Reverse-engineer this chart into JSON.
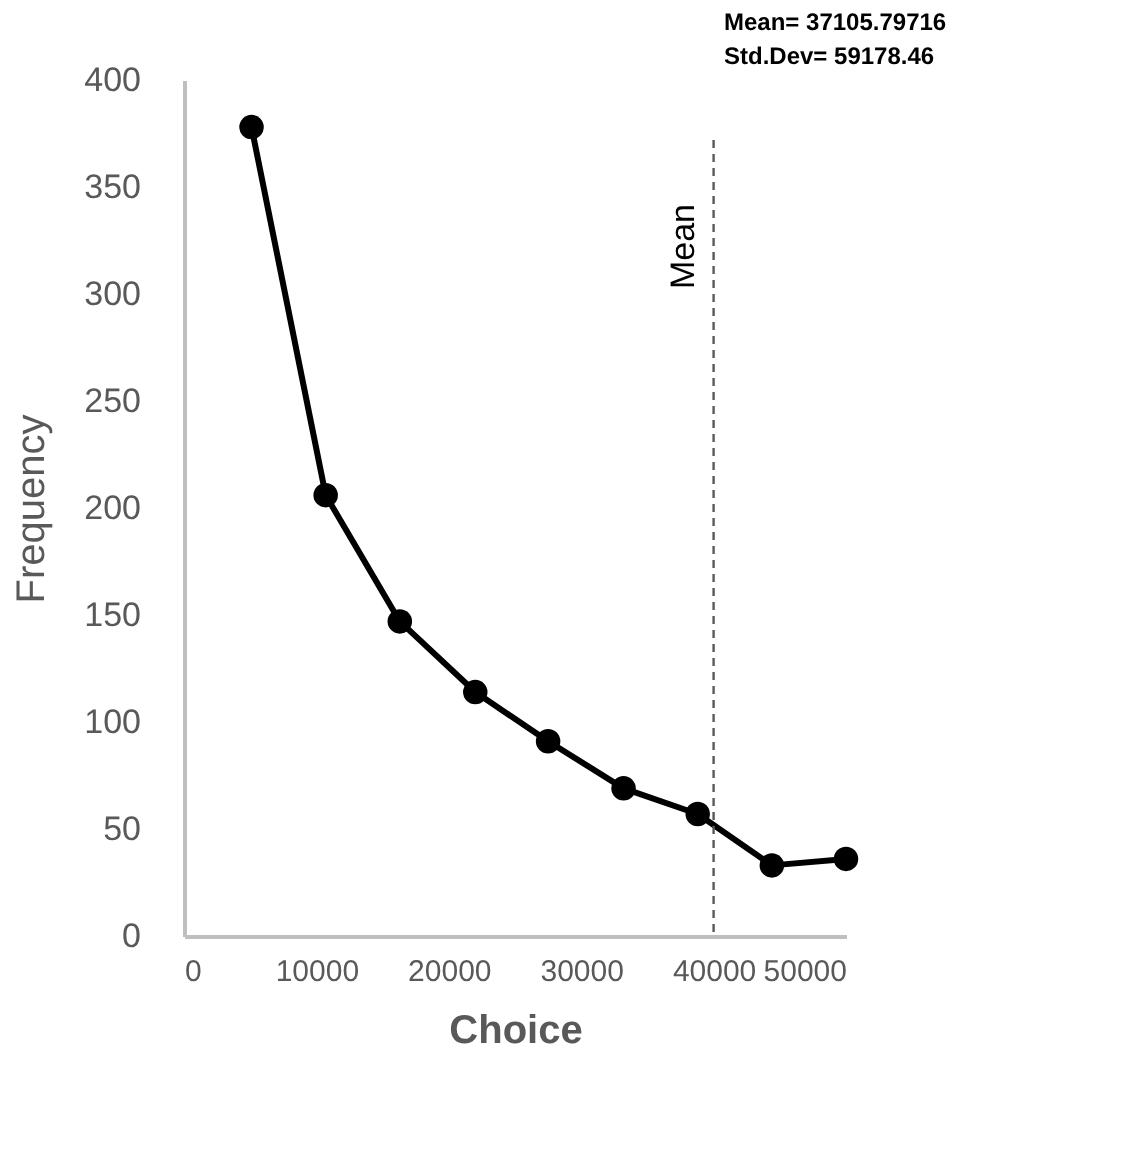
{
  "chart_data": {
    "type": "line",
    "xlabel": "Choice",
    "ylabel": "Frequency",
    "x": [
      5100,
      10700,
      16300,
      22000,
      27500,
      33200,
      38800,
      44400,
      50000
    ],
    "series": [
      {
        "color": "#000000",
        "values": [
          378,
          206,
          147,
          114,
          91,
          69,
          57,
          33,
          36
        ]
      }
    ],
    "xlim": [
      0,
      50000
    ],
    "xticks": [
      0,
      10000,
      20000,
      30000,
      40000,
      50000
    ],
    "ylim": [
      0,
      400
    ],
    "yticks": [
      0,
      50,
      100,
      150,
      200,
      250,
      300,
      350,
      400
    ],
    "grid": false,
    "marker": "circle",
    "line_style": "solid",
    "ref_lines": [
      {
        "axis": "x",
        "value": 40000,
        "label": "Mean",
        "color": "#595959",
        "line_style": "dashed"
      }
    ],
    "annotations": [
      "Mean= 37105.79716",
      "Std.Dev= 59178.46"
    ]
  }
}
